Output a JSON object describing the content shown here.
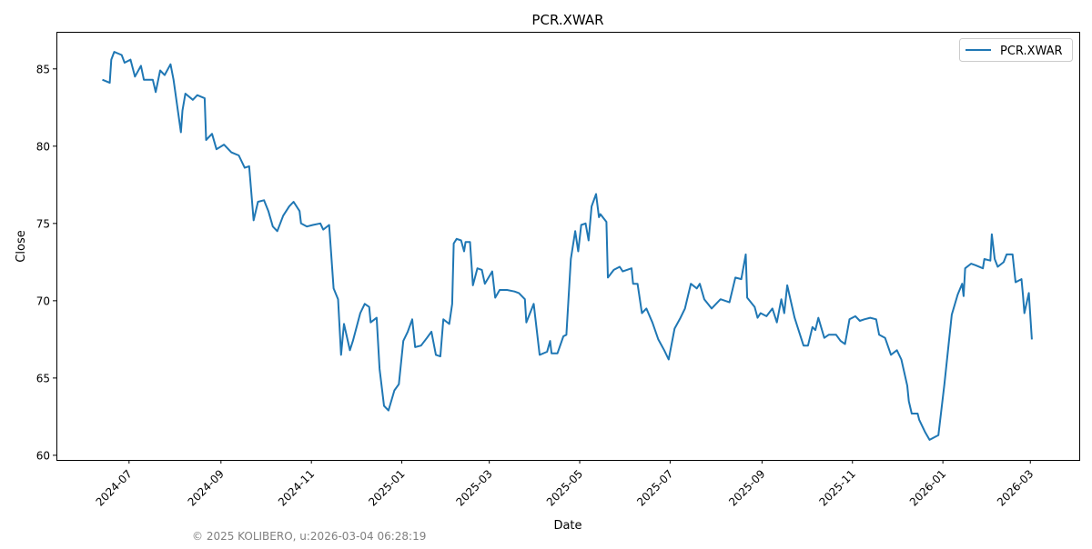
{
  "chart_data": {
    "type": "line",
    "title": "PCR.XWAR",
    "xlabel": "Date",
    "ylabel": "Close",
    "xlim": [
      "2024-05-13",
      "2026-04-03"
    ],
    "ylim": [
      59.7,
      87.4
    ],
    "grid": false,
    "legend": {
      "entries": [
        "PCR.XWAR"
      ],
      "placement": "top-right"
    },
    "xticks": [
      "2024-07",
      "2024-09",
      "2024-11",
      "2025-01",
      "2025-03",
      "2025-05",
      "2025-07",
      "2025-09",
      "2025-11",
      "2026-01",
      "2026-03"
    ],
    "yticks": [
      60,
      65,
      70,
      75,
      80,
      85
    ],
    "series": [
      {
        "name": "PCR.XWAR",
        "color": "#1f77b4",
        "points": [
          [
            "2024-06-13",
            84.3
          ],
          [
            "2024-06-18",
            84.1
          ],
          [
            "2024-06-19",
            85.6
          ],
          [
            "2024-06-21",
            86.1
          ],
          [
            "2024-06-26",
            85.9
          ],
          [
            "2024-06-28",
            85.4
          ],
          [
            "2024-07-02",
            85.6
          ],
          [
            "2024-07-05",
            84.5
          ],
          [
            "2024-07-09",
            85.2
          ],
          [
            "2024-07-11",
            84.3
          ],
          [
            "2024-07-17",
            84.3
          ],
          [
            "2024-07-19",
            83.5
          ],
          [
            "2024-07-22",
            84.9
          ],
          [
            "2024-07-25",
            84.6
          ],
          [
            "2024-07-29",
            85.3
          ],
          [
            "2024-07-31",
            84.3
          ],
          [
            "2024-08-05",
            80.9
          ],
          [
            "2024-08-06",
            82.3
          ],
          [
            "2024-08-08",
            83.4
          ],
          [
            "2024-08-13",
            83.0
          ],
          [
            "2024-08-16",
            83.3
          ],
          [
            "2024-08-21",
            83.1
          ],
          [
            "2024-08-22",
            80.4
          ],
          [
            "2024-08-26",
            80.8
          ],
          [
            "2024-08-29",
            79.8
          ],
          [
            "2024-09-03",
            80.1
          ],
          [
            "2024-09-08",
            79.6
          ],
          [
            "2024-09-13",
            79.4
          ],
          [
            "2024-09-17",
            78.6
          ],
          [
            "2024-09-20",
            78.7
          ],
          [
            "2024-09-23",
            75.2
          ],
          [
            "2024-09-26",
            76.4
          ],
          [
            "2024-09-30",
            76.5
          ],
          [
            "2024-10-03",
            75.8
          ],
          [
            "2024-10-06",
            74.8
          ],
          [
            "2024-10-09",
            74.5
          ],
          [
            "2024-10-13",
            75.5
          ],
          [
            "2024-10-17",
            76.1
          ],
          [
            "2024-10-20",
            76.4
          ],
          [
            "2024-10-24",
            75.8
          ],
          [
            "2024-10-25",
            75.0
          ],
          [
            "2024-10-29",
            74.8
          ],
          [
            "2024-11-02",
            74.9
          ],
          [
            "2024-11-07",
            75.0
          ],
          [
            "2024-11-09",
            74.6
          ],
          [
            "2024-11-13",
            74.9
          ],
          [
            "2024-11-16",
            70.8
          ],
          [
            "2024-11-19",
            70.1
          ],
          [
            "2024-11-21",
            66.5
          ],
          [
            "2024-11-23",
            68.5
          ],
          [
            "2024-11-27",
            66.8
          ],
          [
            "2024-11-29",
            67.4
          ],
          [
            "2024-12-04",
            69.2
          ],
          [
            "2024-12-07",
            69.8
          ],
          [
            "2024-12-10",
            69.6
          ],
          [
            "2024-12-11",
            68.6
          ],
          [
            "2024-12-15",
            68.9
          ],
          [
            "2024-12-17",
            65.6
          ],
          [
            "2024-12-20",
            63.2
          ],
          [
            "2024-12-23",
            62.9
          ],
          [
            "2024-12-27",
            64.2
          ],
          [
            "2024-12-30",
            64.6
          ],
          [
            "2025-01-02",
            67.4
          ],
          [
            "2025-01-05",
            68.0
          ],
          [
            "2025-01-08",
            68.8
          ],
          [
            "2025-01-10",
            67.0
          ],
          [
            "2025-01-14",
            67.1
          ],
          [
            "2025-01-18",
            67.6
          ],
          [
            "2025-01-21",
            68.0
          ],
          [
            "2025-01-24",
            66.5
          ],
          [
            "2025-01-27",
            66.4
          ],
          [
            "2025-01-29",
            68.8
          ],
          [
            "2025-02-02",
            68.5
          ],
          [
            "2025-02-04",
            69.8
          ],
          [
            "2025-02-05",
            73.7
          ],
          [
            "2025-02-07",
            74.0
          ],
          [
            "2025-02-10",
            73.9
          ],
          [
            "2025-02-12",
            73.2
          ],
          [
            "2025-02-13",
            73.8
          ],
          [
            "2025-02-16",
            73.8
          ],
          [
            "2025-02-18",
            71.0
          ],
          [
            "2025-02-21",
            72.1
          ],
          [
            "2025-02-24",
            72.0
          ],
          [
            "2025-02-26",
            71.1
          ],
          [
            "2025-03-03",
            71.9
          ],
          [
            "2025-03-05",
            70.2
          ],
          [
            "2025-03-08",
            70.7
          ],
          [
            "2025-03-13",
            70.7
          ],
          [
            "2025-03-18",
            70.6
          ],
          [
            "2025-03-21",
            70.5
          ],
          [
            "2025-03-25",
            70.1
          ],
          [
            "2025-03-26",
            68.6
          ],
          [
            "2025-03-31",
            69.8
          ],
          [
            "2025-04-04",
            66.5
          ],
          [
            "2025-04-09",
            66.7
          ],
          [
            "2025-04-11",
            67.4
          ],
          [
            "2025-04-12",
            66.6
          ],
          [
            "2025-04-16",
            66.6
          ],
          [
            "2025-04-20",
            67.7
          ],
          [
            "2025-04-22",
            67.8
          ],
          [
            "2025-04-25",
            72.7
          ],
          [
            "2025-04-28",
            74.5
          ],
          [
            "2025-04-30",
            73.2
          ],
          [
            "2025-05-02",
            74.9
          ],
          [
            "2025-05-05",
            75.0
          ],
          [
            "2025-05-07",
            73.9
          ],
          [
            "2025-05-09",
            76.1
          ],
          [
            "2025-05-12",
            76.9
          ],
          [
            "2025-05-14",
            75.4
          ],
          [
            "2025-05-15",
            75.6
          ],
          [
            "2025-05-19",
            75.1
          ],
          [
            "2025-05-20",
            71.5
          ],
          [
            "2025-05-24",
            72.0
          ],
          [
            "2025-05-28",
            72.2
          ],
          [
            "2025-05-30",
            71.9
          ],
          [
            "2025-06-05",
            72.1
          ],
          [
            "2025-06-06",
            71.1
          ],
          [
            "2025-06-09",
            71.1
          ],
          [
            "2025-06-12",
            69.2
          ],
          [
            "2025-06-15",
            69.5
          ],
          [
            "2025-06-19",
            68.6
          ],
          [
            "2025-06-23",
            67.5
          ],
          [
            "2025-06-27",
            66.8
          ],
          [
            "2025-06-30",
            66.2
          ],
          [
            "2025-07-04",
            68.2
          ],
          [
            "2025-07-08",
            68.9
          ],
          [
            "2025-07-11",
            69.5
          ],
          [
            "2025-07-15",
            71.1
          ],
          [
            "2025-07-19",
            70.8
          ],
          [
            "2025-07-21",
            71.1
          ],
          [
            "2025-07-24",
            70.1
          ],
          [
            "2025-07-29",
            69.5
          ],
          [
            "2025-08-04",
            70.1
          ],
          [
            "2025-08-10",
            69.9
          ],
          [
            "2025-08-14",
            71.5
          ],
          [
            "2025-08-18",
            71.4
          ],
          [
            "2025-08-21",
            73.0
          ],
          [
            "2025-08-22",
            70.2
          ],
          [
            "2025-08-27",
            69.6
          ],
          [
            "2025-08-29",
            68.9
          ],
          [
            "2025-08-31",
            69.2
          ],
          [
            "2025-09-04",
            69.0
          ],
          [
            "2025-09-08",
            69.5
          ],
          [
            "2025-09-11",
            68.6
          ],
          [
            "2025-09-14",
            70.1
          ],
          [
            "2025-09-16",
            69.2
          ],
          [
            "2025-09-18",
            71.0
          ],
          [
            "2025-09-23",
            68.9
          ],
          [
            "2025-09-26",
            68.0
          ],
          [
            "2025-09-29",
            67.1
          ],
          [
            "2025-10-02",
            67.1
          ],
          [
            "2025-10-05",
            68.3
          ],
          [
            "2025-10-07",
            68.1
          ],
          [
            "2025-10-09",
            68.9
          ],
          [
            "2025-10-13",
            67.6
          ],
          [
            "2025-10-16",
            67.8
          ],
          [
            "2025-10-21",
            67.8
          ],
          [
            "2025-10-24",
            67.4
          ],
          [
            "2025-10-27",
            67.2
          ],
          [
            "2025-10-30",
            68.8
          ],
          [
            "2025-11-03",
            69.0
          ],
          [
            "2025-11-06",
            68.7
          ],
          [
            "2025-11-09",
            68.8
          ],
          [
            "2025-11-13",
            68.9
          ],
          [
            "2025-11-17",
            68.8
          ],
          [
            "2025-11-19",
            67.8
          ],
          [
            "2025-11-23",
            67.6
          ],
          [
            "2025-11-27",
            66.5
          ],
          [
            "2025-12-01",
            66.8
          ],
          [
            "2025-12-04",
            66.2
          ],
          [
            "2025-12-08",
            64.5
          ],
          [
            "2025-12-09",
            63.5
          ],
          [
            "2025-12-11",
            62.7
          ],
          [
            "2025-12-15",
            62.7
          ],
          [
            "2025-12-16",
            62.3
          ],
          [
            "2025-12-20",
            61.5
          ],
          [
            "2025-12-23",
            61.0
          ],
          [
            "2025-12-29",
            61.3
          ],
          [
            "2026-01-02",
            64.6
          ],
          [
            "2026-01-07",
            69.1
          ],
          [
            "2026-01-11",
            70.4
          ],
          [
            "2026-01-14",
            71.1
          ],
          [
            "2026-01-15",
            70.3
          ],
          [
            "2026-01-16",
            72.1
          ],
          [
            "2026-01-20",
            72.4
          ],
          [
            "2026-01-23",
            72.3
          ],
          [
            "2026-01-28",
            72.1
          ],
          [
            "2026-01-29",
            72.7
          ],
          [
            "2026-02-02",
            72.6
          ],
          [
            "2026-02-03",
            74.3
          ],
          [
            "2026-02-05",
            72.7
          ],
          [
            "2026-02-07",
            72.2
          ],
          [
            "2026-02-11",
            72.5
          ],
          [
            "2026-02-13",
            73.0
          ],
          [
            "2026-02-17",
            73.0
          ],
          [
            "2026-02-19",
            71.2
          ],
          [
            "2026-02-23",
            71.4
          ],
          [
            "2026-02-24",
            70.4
          ],
          [
            "2026-02-25",
            69.2
          ],
          [
            "2026-02-28",
            70.5
          ],
          [
            "2026-03-02",
            67.5
          ]
        ]
      }
    ]
  },
  "footer": "© 2025 KOLIBERO, u:2026-03-04 06:28:19"
}
